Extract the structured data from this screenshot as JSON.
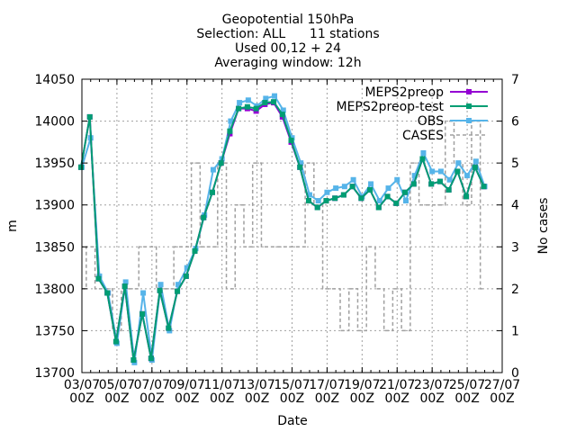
{
  "chart_data": {
    "type": "line",
    "title_lines": [
      "Geopotential 150hPa",
      "Selection: ALL      11 stations",
      "Used 00,12 + 24",
      "Averaging window: 12h"
    ],
    "xlabel": "Date",
    "ylabel": "m",
    "y2label": "No cases",
    "ylim": [
      13700,
      14050
    ],
    "y_ticks": [
      13700,
      13750,
      13800,
      13850,
      13900,
      13950,
      14000,
      14050
    ],
    "y2lim": [
      0,
      7
    ],
    "y2_ticks": [
      0,
      1,
      2,
      3,
      4,
      5,
      6,
      7
    ],
    "x_range": [
      0,
      48
    ],
    "x_ticks": [
      {
        "x": 0,
        "line1": "03/07",
        "line2": "00Z"
      },
      {
        "x": 4,
        "line1": "05/07",
        "line2": "00Z"
      },
      {
        "x": 8,
        "line1": "07/07",
        "line2": "00Z"
      },
      {
        "x": 12,
        "line1": "09/07",
        "line2": "00Z"
      },
      {
        "x": 16,
        "line1": "11/07",
        "line2": "00Z"
      },
      {
        "x": 20,
        "line1": "13/07",
        "line2": "00Z"
      },
      {
        "x": 24,
        "line1": "15/07",
        "line2": "00Z"
      },
      {
        "x": 28,
        "line1": "17/07",
        "line2": "00Z"
      },
      {
        "x": 32,
        "line1": "19/07",
        "line2": "00Z"
      },
      {
        "x": 36,
        "line1": "21/07",
        "line2": "00Z"
      },
      {
        "x": 40,
        "line1": "23/07",
        "line2": "00Z"
      },
      {
        "x": 44,
        "line1": "25/07",
        "line2": "00Z"
      },
      {
        "x": 48,
        "line1": "27/07",
        "line2": "00Z"
      }
    ],
    "x_minor_step": 1,
    "grid": true,
    "legend_position": "top-right",
    "series": [
      {
        "name": "MEPS2preop",
        "color": "#9400d3",
        "marker": "square",
        "axis": "y1",
        "x": [
          -0.1,
          0.9,
          1.9,
          2.9,
          3.9,
          4.9,
          5.9,
          6.9,
          7.9,
          8.9,
          9.9,
          10.9,
          11.9,
          12.9,
          13.9,
          14.9,
          15.9,
          16.9,
          17.9,
          18.9,
          19.9,
          20.9,
          21.9,
          22.9,
          23.9,
          24.9,
          25.9,
          26.9,
          27.9,
          28.9,
          29.9,
          30.9,
          31.9,
          32.9,
          33.9,
          34.9,
          35.9,
          36.9,
          37.9,
          38.9,
          39.9,
          40.9,
          41.9,
          42.9,
          43.9,
          44.9,
          45.9
        ],
        "values": [
          13945,
          14005,
          13812,
          13795,
          13737,
          13803,
          13715,
          13770,
          13717,
          13798,
          13753,
          13797,
          13815,
          13845,
          13885,
          13915,
          13950,
          13985,
          14015,
          14015,
          14012,
          14020,
          14022,
          14005,
          13975,
          13945,
          13905,
          13897,
          13905,
          13908,
          13912,
          13922,
          13908,
          13918,
          13897,
          13910,
          13902,
          13915,
          13925,
          13955,
          13925,
          13928,
          13918,
          13940,
          13910,
          13945,
          13922
        ]
      },
      {
        "name": "MEPS2preop-test",
        "color": "#009e73",
        "marker": "square",
        "axis": "y1",
        "x": [
          -0.1,
          0.9,
          1.9,
          2.9,
          3.9,
          4.9,
          5.9,
          6.9,
          7.9,
          8.9,
          9.9,
          10.9,
          11.9,
          12.9,
          13.9,
          14.9,
          15.9,
          16.9,
          17.9,
          18.9,
          19.9,
          20.9,
          21.9,
          22.9,
          23.9,
          24.9,
          25.9,
          26.9,
          27.9,
          28.9,
          29.9,
          30.9,
          31.9,
          32.9,
          33.9,
          34.9,
          35.9,
          36.9,
          37.9,
          38.9,
          39.9,
          40.9,
          41.9,
          42.9,
          43.9,
          44.9,
          45.9
        ],
        "values": [
          13945,
          14005,
          13812,
          13795,
          13737,
          13803,
          13715,
          13770,
          13717,
          13798,
          13753,
          13797,
          13815,
          13845,
          13885,
          13915,
          13950,
          13988,
          14015,
          14017,
          14015,
          14022,
          14023,
          14008,
          13977,
          13945,
          13905,
          13897,
          13905,
          13908,
          13912,
          13922,
          13908,
          13918,
          13897,
          13910,
          13902,
          13915,
          13925,
          13955,
          13925,
          13928,
          13918,
          13940,
          13910,
          13945,
          13922
        ]
      },
      {
        "name": "OBS",
        "color": "#56b4e9",
        "marker": "square",
        "axis": "y1",
        "x": [
          0,
          1,
          2,
          3,
          4,
          5,
          6,
          7,
          8,
          9,
          10,
          11,
          12,
          13,
          14,
          15,
          16,
          17,
          18,
          19,
          20,
          21,
          22,
          23,
          24,
          25,
          26,
          27,
          28,
          29,
          30,
          31,
          32,
          33,
          34,
          35,
          36,
          37,
          38,
          39,
          40,
          41,
          42,
          43,
          44,
          45,
          46
        ],
        "values": [
          13945,
          13980,
          13815,
          13795,
          13735,
          13808,
          13712,
          13795,
          13715,
          13805,
          13750,
          13805,
          13825,
          13848,
          13888,
          13942,
          13955,
          14000,
          14022,
          14025,
          14018,
          14027,
          14030,
          14013,
          13980,
          13950,
          13912,
          13905,
          13915,
          13920,
          13922,
          13930,
          13910,
          13925,
          13905,
          13920,
          13930,
          13905,
          13935,
          13962,
          13940,
          13940,
          13930,
          13950,
          13935,
          13952,
          13922
        ]
      },
      {
        "name": "CASES",
        "color": "#a0a0a0",
        "marker": "none",
        "dashed": true,
        "axis": "y2",
        "x": [
          0,
          1,
          2,
          3,
          4,
          5,
          6,
          7,
          8,
          9,
          10,
          11,
          12,
          13,
          14,
          15,
          16,
          17,
          18,
          19,
          20,
          21,
          22,
          23,
          24,
          25,
          26,
          27,
          28,
          29,
          30,
          31,
          32,
          33,
          34,
          35,
          36,
          37,
          38,
          39,
          40,
          41,
          42,
          43,
          44,
          45,
          46
        ],
        "values": [
          2,
          3,
          2,
          2,
          1,
          2,
          2,
          3,
          3,
          2,
          2,
          3,
          3,
          5,
          3,
          3,
          5,
          2,
          4,
          3,
          5,
          3,
          3,
          3,
          3,
          3,
          5,
          4,
          2,
          2,
          1,
          2,
          1,
          3,
          2,
          1,
          2,
          1,
          5,
          4,
          4,
          4,
          6,
          5,
          4,
          6,
          2
        ]
      }
    ]
  }
}
